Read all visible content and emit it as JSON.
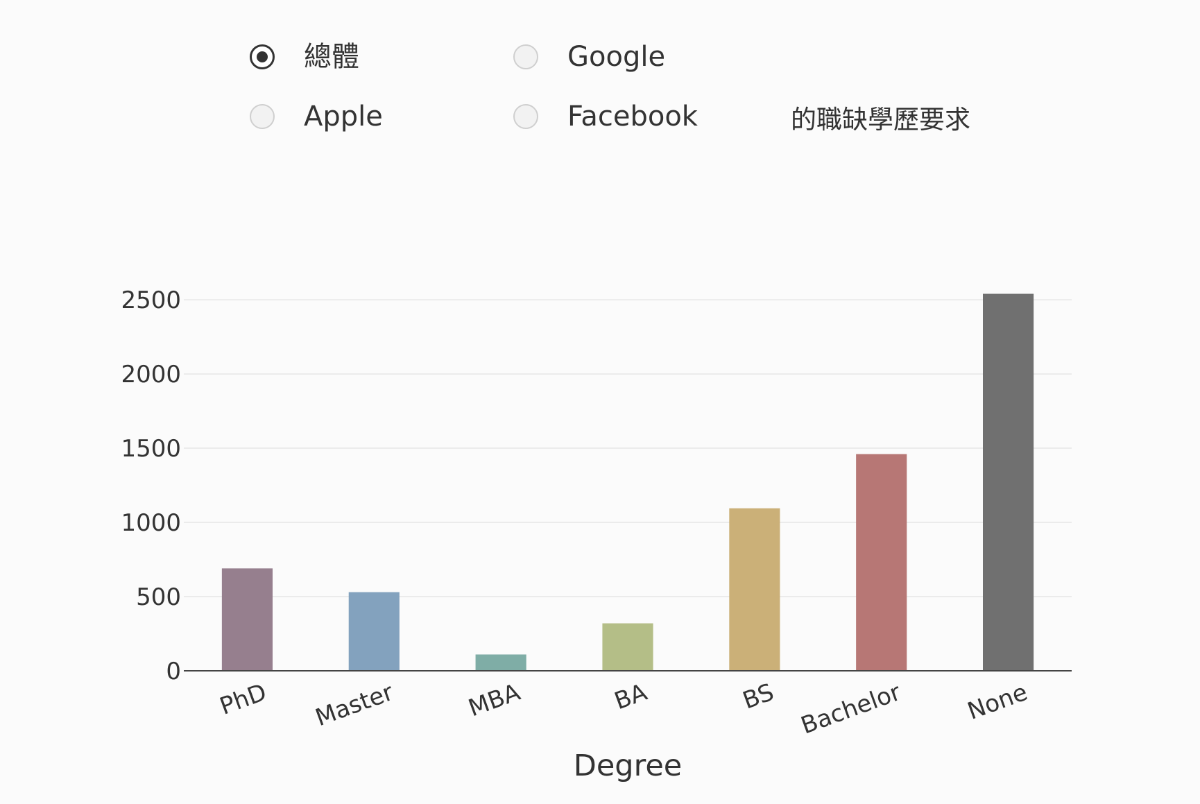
{
  "filter": {
    "options": [
      {
        "label": "總體",
        "checked": true
      },
      {
        "label": "Google",
        "checked": false
      },
      {
        "label": "Apple",
        "checked": false
      },
      {
        "label": "Facebook",
        "checked": false
      }
    ]
  },
  "chart_data": {
    "type": "bar",
    "title": "的職缺學歷要求",
    "xlabel": "Degree",
    "ylabel": "",
    "categories": [
      "PhD",
      "Master",
      "MBA",
      "BA",
      "BS",
      "Bachelor",
      "None"
    ],
    "values": [
      690,
      530,
      110,
      320,
      1095,
      1460,
      2540
    ],
    "colors": [
      "#967f8e",
      "#83a2be",
      "#7fada6",
      "#b4be87",
      "#cbb078",
      "#b77775",
      "#707070"
    ],
    "yticks": [
      0,
      500,
      1000,
      1500,
      2000,
      2500
    ],
    "ylim": [
      0,
      2650
    ],
    "grid": true,
    "legend": "none"
  }
}
